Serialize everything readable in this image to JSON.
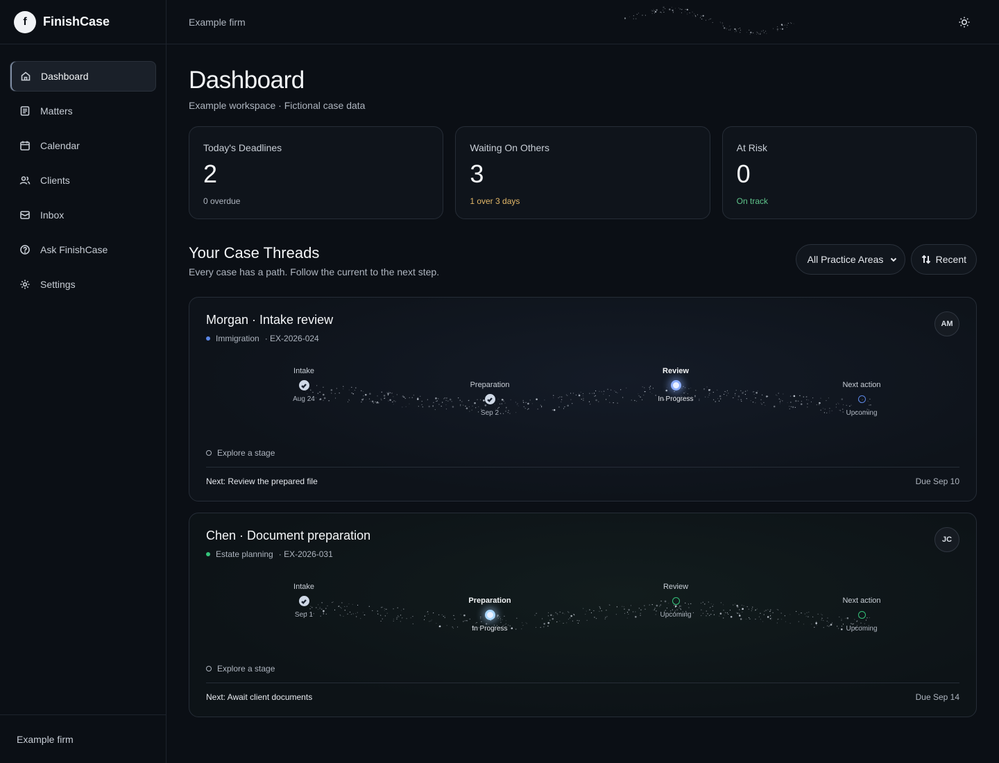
{
  "brand": {
    "logo_letter": "f",
    "name": "FinishCase"
  },
  "nav": {
    "items": [
      {
        "label": "Dashboard",
        "icon": "home-icon",
        "active": true
      },
      {
        "label": "Matters",
        "icon": "document-icon"
      },
      {
        "label": "Calendar",
        "icon": "calendar-icon"
      },
      {
        "label": "Clients",
        "icon": "users-icon"
      },
      {
        "label": "Inbox",
        "icon": "inbox-icon"
      },
      {
        "label": "Ask FinishCase",
        "icon": "help-icon"
      },
      {
        "label": "Settings",
        "icon": "gear-icon"
      }
    ]
  },
  "sidebar_footer": "Example firm",
  "topbar": {
    "firm": "Example firm",
    "theme_icon": "sun-icon"
  },
  "page": {
    "title": "Dashboard",
    "subtitle": "Example workspace · Fictional case data"
  },
  "stats": [
    {
      "label": "Today's Deadlines",
      "value": "2",
      "sub": "0 overdue",
      "tone": "neutral"
    },
    {
      "label": "Waiting On Others",
      "value": "3",
      "sub": "1 over 3 days",
      "tone": "warn",
      "color": "#e3b868"
    },
    {
      "label": "At Risk",
      "value": "0",
      "sub": "On track",
      "tone": "ok",
      "color": "#5fc48b"
    }
  ],
  "threads": {
    "title": "Your Case Threads",
    "subtitle": "Every case has a path. Follow the current to the next step.",
    "filter": {
      "selected": "All Practice Areas"
    },
    "sort_label": "Recent"
  },
  "cases": [
    {
      "title": "Morgan · Intake review",
      "area": "Immigration",
      "area_color": "#5b86e5",
      "case_id": "· EX-2026-024",
      "avatar": "AM",
      "stages": [
        {
          "label": "Intake",
          "sub": "Aug 24",
          "state": "done"
        },
        {
          "label": "Preparation",
          "sub": "Sep 2",
          "state": "done"
        },
        {
          "label": "Review",
          "sub": "In Progress",
          "state": "current"
        },
        {
          "label": "Next action",
          "sub": "Upcoming",
          "state": "upcoming"
        }
      ],
      "explore_label": "Explore a stage",
      "next": "Next: Review the prepared file",
      "due": "Due Sep 10"
    },
    {
      "title": "Chen · Document preparation",
      "area": "Estate planning",
      "area_color": "#34c37a",
      "case_id": "· EX-2026-031",
      "avatar": "JC",
      "stages": [
        {
          "label": "Intake",
          "sub": "Sep 1",
          "state": "done"
        },
        {
          "label": "Preparation",
          "sub": "In Progress",
          "state": "current"
        },
        {
          "label": "Review",
          "sub": "Upcoming",
          "state": "upcoming"
        },
        {
          "label": "Next action",
          "sub": "Upcoming",
          "state": "upcoming"
        }
      ],
      "explore_label": "Explore a stage",
      "next": "Next: Await client documents",
      "due": "Due Sep 14"
    }
  ]
}
